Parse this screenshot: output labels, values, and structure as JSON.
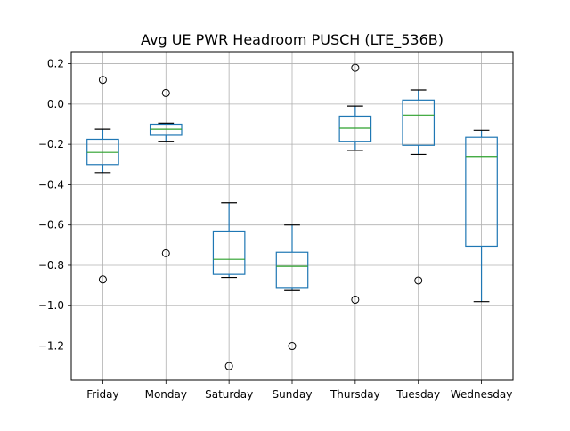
{
  "chart_data": {
    "type": "box",
    "title": "Avg UE PWR Headroom PUSCH (LTE_536B)",
    "xlabel": "",
    "ylabel": "",
    "ylim": [
      -1.37,
      0.26
    ],
    "yticks": [
      0.2,
      0.0,
      -0.2,
      -0.4,
      -0.6,
      -0.8,
      -1.0,
      -1.2
    ],
    "ytick_labels": [
      "0.2",
      "0.0",
      "−0.2",
      "−0.4",
      "−0.6",
      "−0.8",
      "−1.0",
      "−1.2"
    ],
    "grid": true,
    "categories": [
      "Friday",
      "Monday",
      "Saturday",
      "Sunday",
      "Thursday",
      "Tuesday",
      "Wednesday"
    ],
    "boxes": [
      {
        "category": "Friday",
        "whisker_low": -0.34,
        "q1": -0.3,
        "median": -0.24,
        "q3": -0.175,
        "whisker_high": -0.125,
        "outliers": [
          0.12,
          -0.87
        ]
      },
      {
        "category": "Monday",
        "whisker_low": -0.185,
        "q1": -0.155,
        "median": -0.125,
        "q3": -0.1,
        "whisker_high": -0.095,
        "outliers": [
          0.055,
          -0.74
        ]
      },
      {
        "category": "Saturday",
        "whisker_low": -0.86,
        "q1": -0.845,
        "median": -0.77,
        "q3": -0.63,
        "whisker_high": -0.49,
        "outliers": [
          -1.3
        ]
      },
      {
        "category": "Sunday",
        "whisker_low": -0.925,
        "q1": -0.91,
        "median": -0.805,
        "q3": -0.735,
        "whisker_high": -0.6,
        "outliers": [
          -1.2
        ]
      },
      {
        "category": "Thursday",
        "whisker_low": -0.23,
        "q1": -0.185,
        "median": -0.12,
        "q3": -0.06,
        "whisker_high": -0.01,
        "outliers": [
          0.18,
          -0.97
        ]
      },
      {
        "category": "Tuesday",
        "whisker_low": -0.25,
        "q1": -0.205,
        "median": -0.055,
        "q3": 0.02,
        "whisker_high": 0.07,
        "outliers": [
          -0.875
        ]
      },
      {
        "category": "Wednesday",
        "whisker_low": -0.98,
        "q1": -0.705,
        "median": -0.26,
        "q3": -0.165,
        "whisker_high": -0.13,
        "outliers": []
      }
    ],
    "colors": {
      "box": "#1f77b4",
      "median": "#2ca02c",
      "whisker_cap": "#000000",
      "outlier_edge": "#000000",
      "grid": "#b0b0b0",
      "axes": "#000000"
    }
  }
}
